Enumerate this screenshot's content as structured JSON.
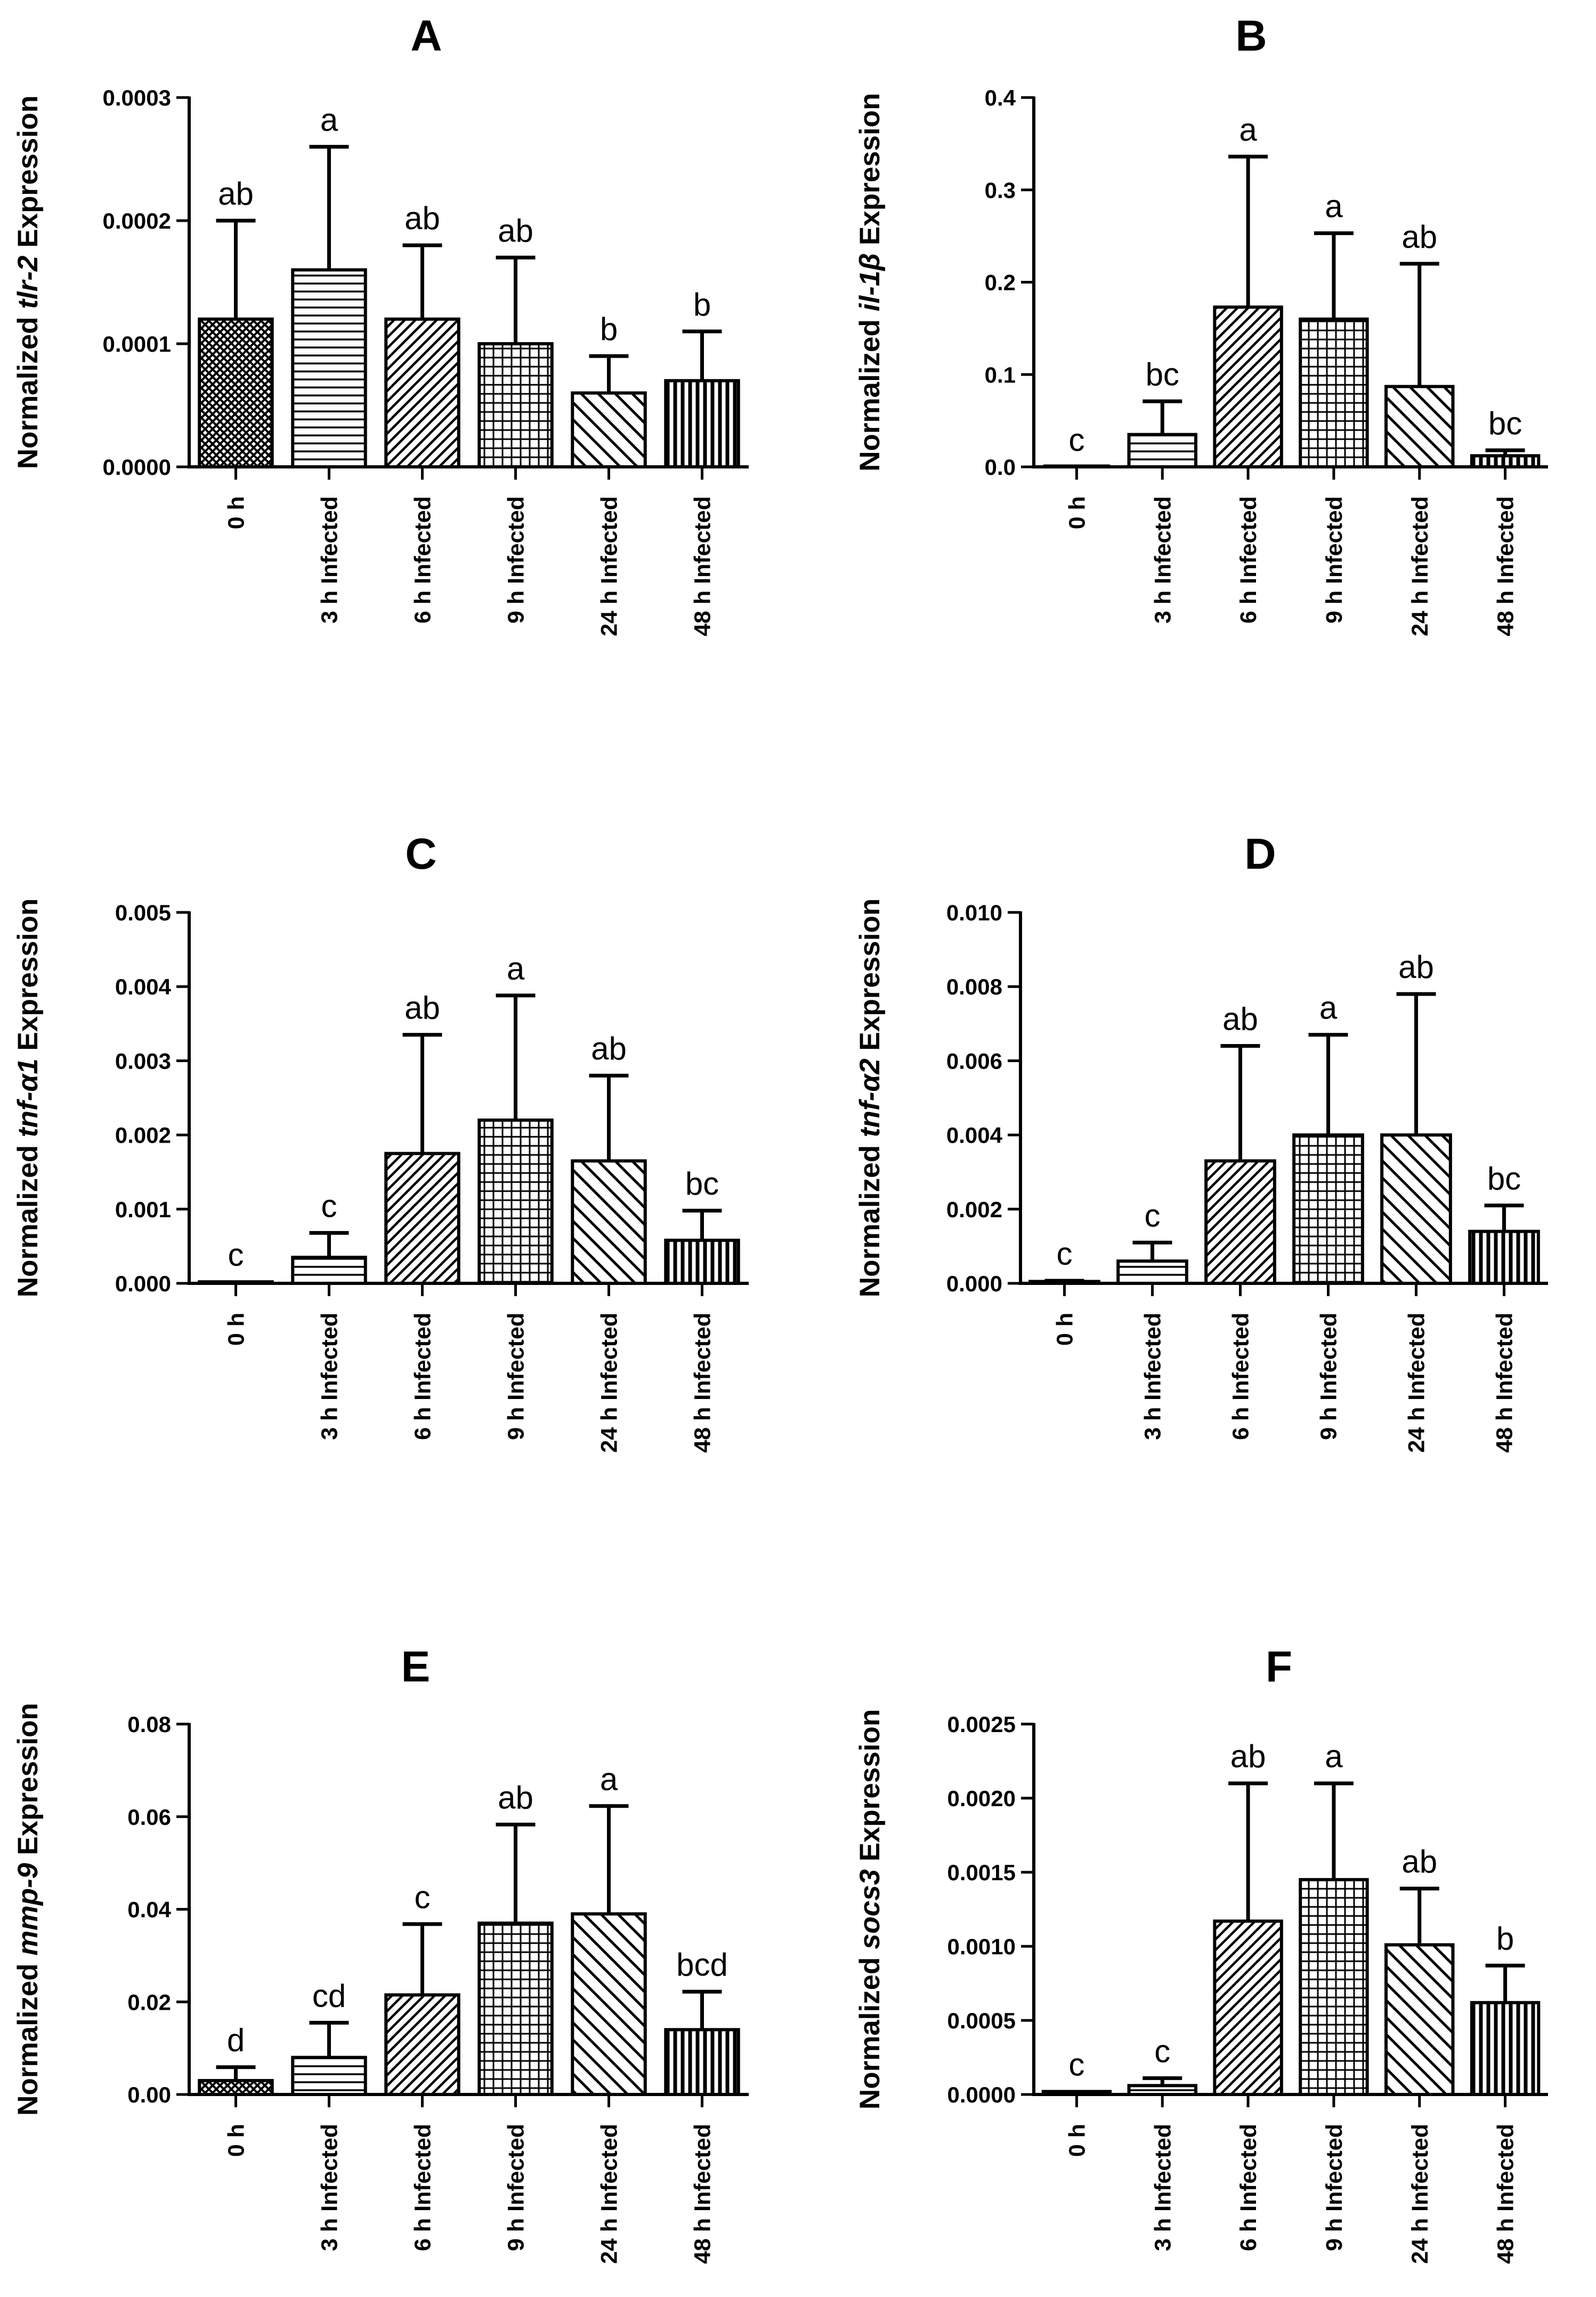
{
  "chart_data": [
    {
      "type": "bar",
      "title": "A",
      "ylabel": {
        "prefix": "Normalized ",
        "gene": "tlr-2",
        "suffix": " Expression"
      },
      "xlabel": "",
      "categories": [
        "0 h",
        "3 h Infected",
        "6 h Infected",
        "9 h Infected",
        "24 h Infected",
        "48 h Infected"
      ],
      "values": [
        0.00012,
        0.00016,
        0.00012,
        0.0001,
        6e-05,
        7e-05
      ],
      "error_upper": [
        0.0002,
        0.00026,
        0.00018,
        0.00017,
        9e-05,
        0.00011
      ],
      "significance": [
        "ab",
        "a",
        "ab",
        "ab",
        "b",
        "b"
      ],
      "patterns": [
        "crosshatch",
        "horizontal",
        "diagonal-right",
        "grid",
        "diagonal-left",
        "vertical"
      ],
      "ylim": [
        0,
        0.0003
      ],
      "yticks": [
        0,
        0.0001,
        0.0002,
        0.0003
      ],
      "yticklabels": [
        "0.0000",
        "0.0001",
        "0.0002",
        "0.0003"
      ]
    },
    {
      "type": "bar",
      "title": "B",
      "ylabel": {
        "prefix": "Normalized ",
        "gene": "il-1β",
        "suffix": " Expression"
      },
      "xlabel": "",
      "categories": [
        "0 h",
        "3 h Infected",
        "6 h Infected",
        "9 h Infected",
        "24 h Infected",
        "48 h Infected"
      ],
      "values": [
        0,
        0.035,
        0.173,
        0.16,
        0.087,
        0.012
      ],
      "error_upper": [
        0,
        0.071,
        0.336,
        0.253,
        0.22,
        0.018
      ],
      "significance": [
        "c",
        "bc",
        "a",
        "a",
        "ab",
        "bc"
      ],
      "patterns": [
        "crosshatch",
        "horizontal",
        "diagonal-right",
        "grid",
        "diagonal-left",
        "vertical"
      ],
      "ylim": [
        0,
        0.4
      ],
      "yticks": [
        0,
        0.1,
        0.2,
        0.3,
        0.4
      ],
      "yticklabels": [
        "0.0",
        "0.1",
        "0.2",
        "0.3",
        "0.4"
      ]
    },
    {
      "type": "bar",
      "title": "C",
      "ylabel": {
        "prefix": "Normalized ",
        "gene": "tnf-α1",
        "suffix": " Expression"
      },
      "xlabel": "",
      "categories": [
        "0 h",
        "3 h Infected",
        "6 h Infected",
        "9 h Infected",
        "24 h Infected",
        "48 h Infected"
      ],
      "values": [
        2e-05,
        0.00035,
        0.00175,
        0.0022,
        0.00165,
        0.00058
      ],
      "error_upper": [
        2e-05,
        0.00068,
        0.00335,
        0.00388,
        0.0028,
        0.00098
      ],
      "significance": [
        "c",
        "c",
        "ab",
        "a",
        "ab",
        "bc"
      ],
      "patterns": [
        "crosshatch",
        "horizontal",
        "diagonal-right",
        "grid",
        "diagonal-left",
        "vertical"
      ],
      "ylim": [
        0,
        0.005
      ],
      "yticks": [
        0,
        0.001,
        0.002,
        0.003,
        0.004,
        0.005
      ],
      "yticklabels": [
        "0.000",
        "0.001",
        "0.002",
        "0.003",
        "0.004",
        "0.005"
      ]
    },
    {
      "type": "bar",
      "title": "D",
      "ylabel": {
        "prefix": "Normalized ",
        "gene": "tnf-α2",
        "suffix": " Expression"
      },
      "xlabel": "",
      "categories": [
        "0 h",
        "3 h Infected",
        "6 h Infected",
        "9 h Infected",
        "24 h Infected",
        "48 h Infected"
      ],
      "values": [
        5e-05,
        0.0006,
        0.0033,
        0.004,
        0.004,
        0.0014
      ],
      "error_upper": [
        7e-05,
        0.0011,
        0.0064,
        0.0067,
        0.0078,
        0.0021
      ],
      "significance": [
        "c",
        "c",
        "ab",
        "a",
        "ab",
        "bc"
      ],
      "patterns": [
        "crosshatch",
        "horizontal",
        "diagonal-right",
        "grid",
        "diagonal-left",
        "vertical"
      ],
      "ylim": [
        0,
        0.01
      ],
      "yticks": [
        0,
        0.002,
        0.004,
        0.006,
        0.008,
        0.01
      ],
      "yticklabels": [
        "0.000",
        "0.002",
        "0.004",
        "0.006",
        "0.008",
        "0.010"
      ]
    },
    {
      "type": "bar",
      "title": "E",
      "ylabel": {
        "prefix": "Normalized ",
        "gene": "mmp-9",
        "suffix": " Expression"
      },
      "xlabel": "",
      "categories": [
        "0 h",
        "3 h Infected",
        "6 h Infected",
        "9 h Infected",
        "24 h Infected",
        "48 h Infected"
      ],
      "values": [
        0.003,
        0.008,
        0.0215,
        0.037,
        0.039,
        0.014
      ],
      "error_upper": [
        0.0059,
        0.0155,
        0.0368,
        0.0583,
        0.0623,
        0.0222
      ],
      "significance": [
        "d",
        "cd",
        "c",
        "ab",
        "a",
        "bcd"
      ],
      "patterns": [
        "crosshatch",
        "horizontal",
        "diagonal-right",
        "grid",
        "diagonal-left",
        "vertical"
      ],
      "ylim": [
        0,
        0.08
      ],
      "yticks": [
        0,
        0.02,
        0.04,
        0.06,
        0.08
      ],
      "yticklabels": [
        "0.00",
        "0.02",
        "0.04",
        "0.06",
        "0.08"
      ]
    },
    {
      "type": "bar",
      "title": "F",
      "ylabel": {
        "prefix": "Normalized ",
        "gene": "socs3",
        "suffix": " Expression"
      },
      "xlabel": "",
      "categories": [
        "0 h",
        "3 h Infected",
        "6 h Infected",
        "9 h Infected",
        "24 h Infected",
        "48 h Infected"
      ],
      "values": [
        2e-05,
        6e-05,
        0.00117,
        0.00145,
        0.00101,
        0.00062
      ],
      "error_upper": [
        2e-05,
        0.00011,
        0.0021,
        0.0021,
        0.00139,
        0.00087
      ],
      "significance": [
        "c",
        "c",
        "ab",
        "a",
        "ab",
        "b"
      ],
      "patterns": [
        "crosshatch",
        "horizontal",
        "diagonal-right",
        "grid",
        "diagonal-left",
        "vertical"
      ],
      "ylim": [
        0,
        0.0025
      ],
      "yticks": [
        0,
        0.0005,
        0.001,
        0.0015,
        0.002,
        0.0025
      ],
      "yticklabels": [
        "0.0000",
        "0.0005",
        "0.0010",
        "0.0015",
        "0.0020",
        "0.0025"
      ]
    }
  ]
}
